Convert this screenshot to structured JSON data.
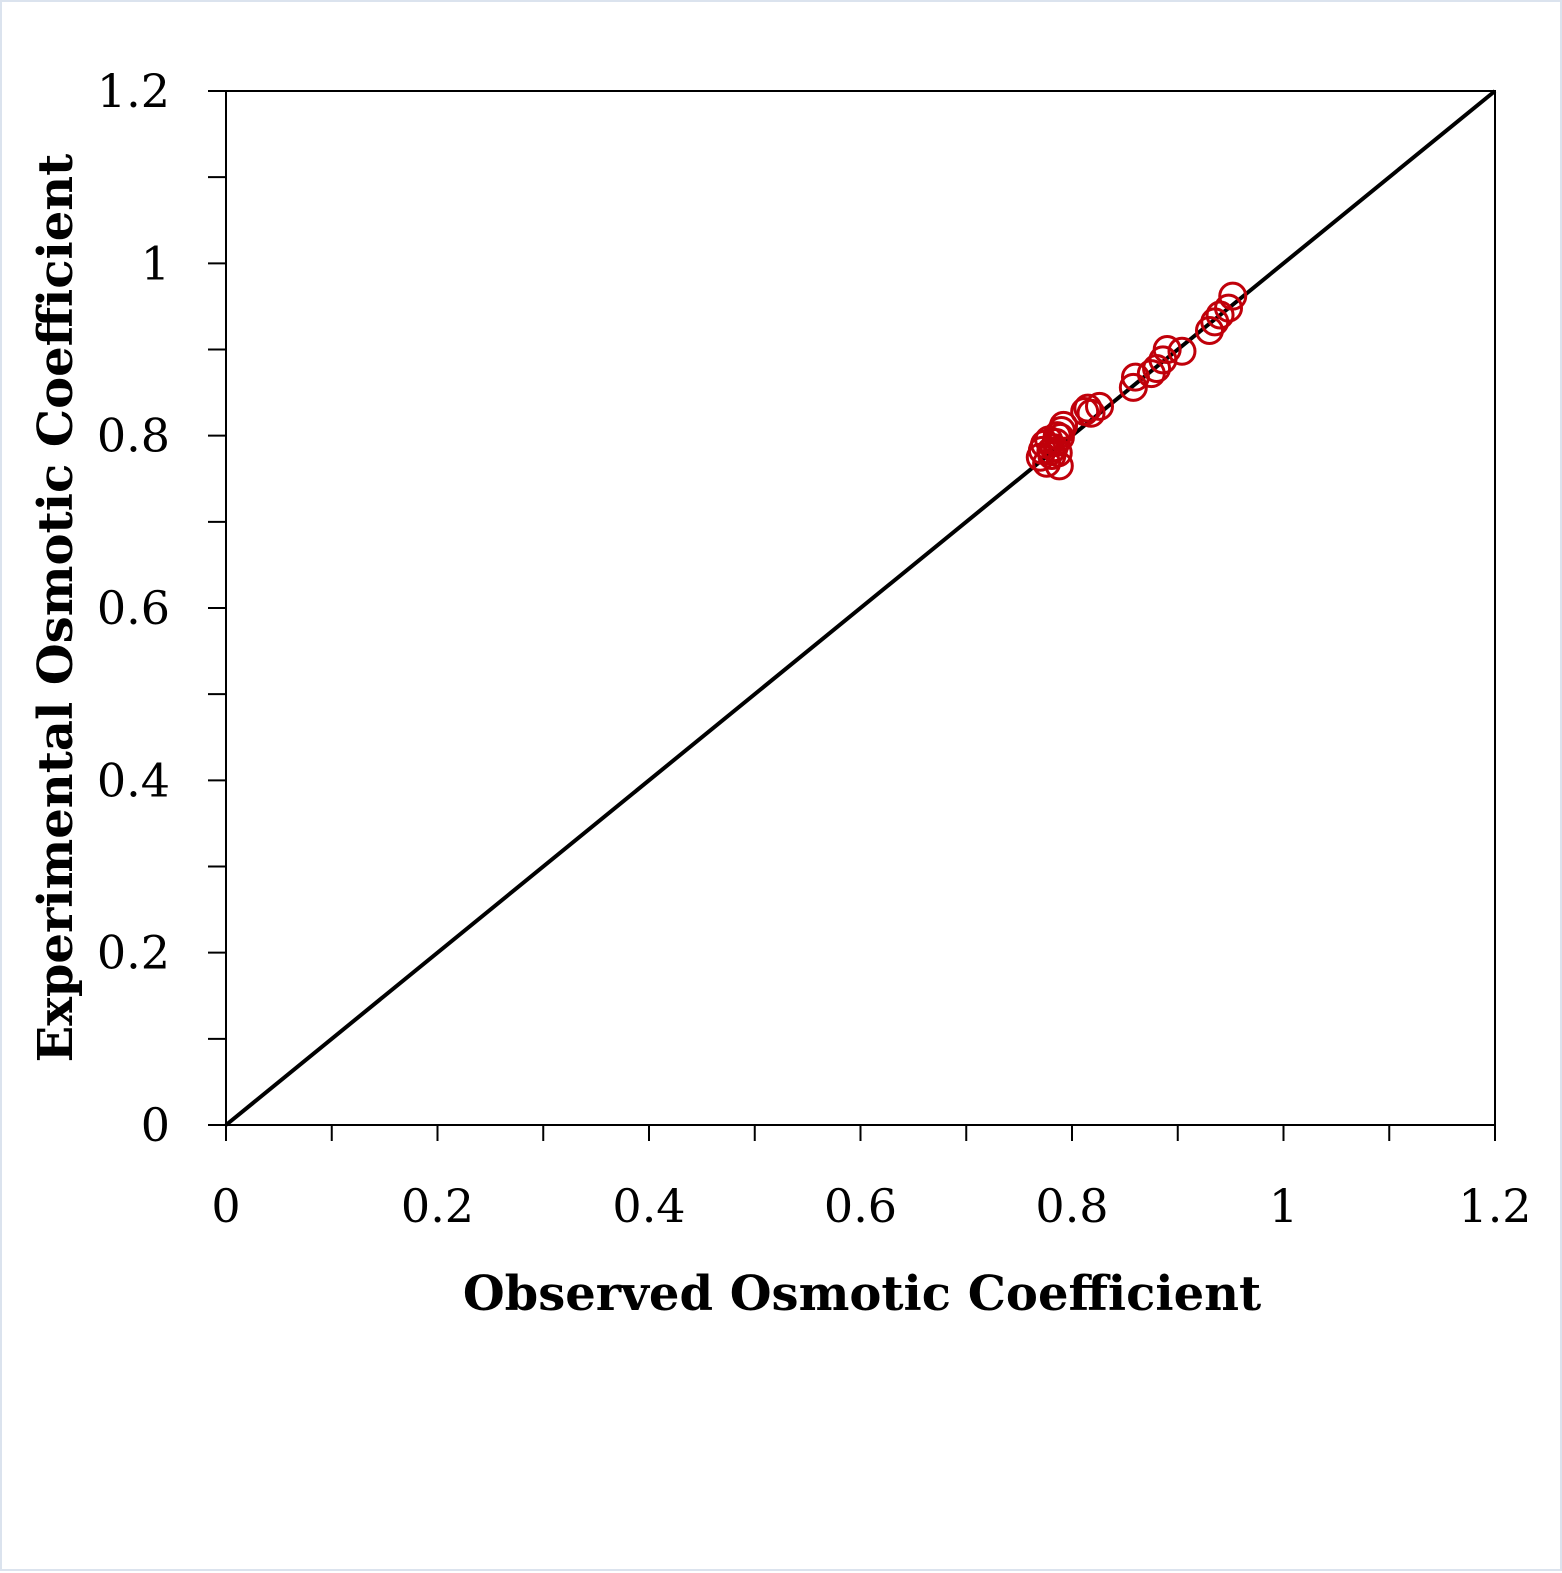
{
  "chart_data": {
    "type": "scatter",
    "xlabel": "Observed Osmotic Coefficient",
    "ylabel": "Experimental Osmotic Coefficient",
    "xlim": [
      0,
      1.2
    ],
    "ylim": [
      0,
      1.2
    ],
    "x_ticks": [
      "0",
      "0.2",
      "0.4",
      "0.6",
      "0.8",
      "1",
      "1.2"
    ],
    "y_ticks": [
      "0",
      "0.2",
      "0.4",
      "0.6",
      "0.8",
      "1",
      "1.2"
    ],
    "x_tick_values": [
      0,
      0.2,
      0.4,
      0.6,
      0.8,
      1.0,
      1.2
    ],
    "y_tick_values": [
      0,
      0.2,
      0.4,
      0.6,
      0.8,
      1.0,
      1.2
    ],
    "minor_tick_step": 0.1,
    "grid": false,
    "reference_line": {
      "from": [
        0,
        0
      ],
      "to": [
        1.2,
        1.2
      ],
      "color": "#000000"
    },
    "series": [
      {
        "marker": "open-circle",
        "color": "#c0000a",
        "points": [
          [
            0.77,
            0.775
          ],
          [
            0.772,
            0.783
          ],
          [
            0.774,
            0.79
          ],
          [
            0.776,
            0.768
          ],
          [
            0.778,
            0.795
          ],
          [
            0.78,
            0.782
          ],
          [
            0.781,
            0.777
          ],
          [
            0.783,
            0.786
          ],
          [
            0.785,
            0.792
          ],
          [
            0.786,
            0.8
          ],
          [
            0.787,
            0.78
          ],
          [
            0.788,
            0.765
          ],
          [
            0.789,
            0.798
          ],
          [
            0.79,
            0.806
          ],
          [
            0.792,
            0.812
          ],
          [
            0.812,
            0.828
          ],
          [
            0.815,
            0.832
          ],
          [
            0.818,
            0.826
          ],
          [
            0.826,
            0.834
          ],
          [
            0.858,
            0.856
          ],
          [
            0.86,
            0.868
          ],
          [
            0.875,
            0.872
          ],
          [
            0.88,
            0.878
          ],
          [
            0.886,
            0.888
          ],
          [
            0.89,
            0.9
          ],
          [
            0.904,
            0.898
          ],
          [
            0.93,
            0.922
          ],
          [
            0.935,
            0.932
          ],
          [
            0.94,
            0.94
          ],
          [
            0.948,
            0.948
          ],
          [
            0.952,
            0.962
          ]
        ]
      }
    ]
  }
}
